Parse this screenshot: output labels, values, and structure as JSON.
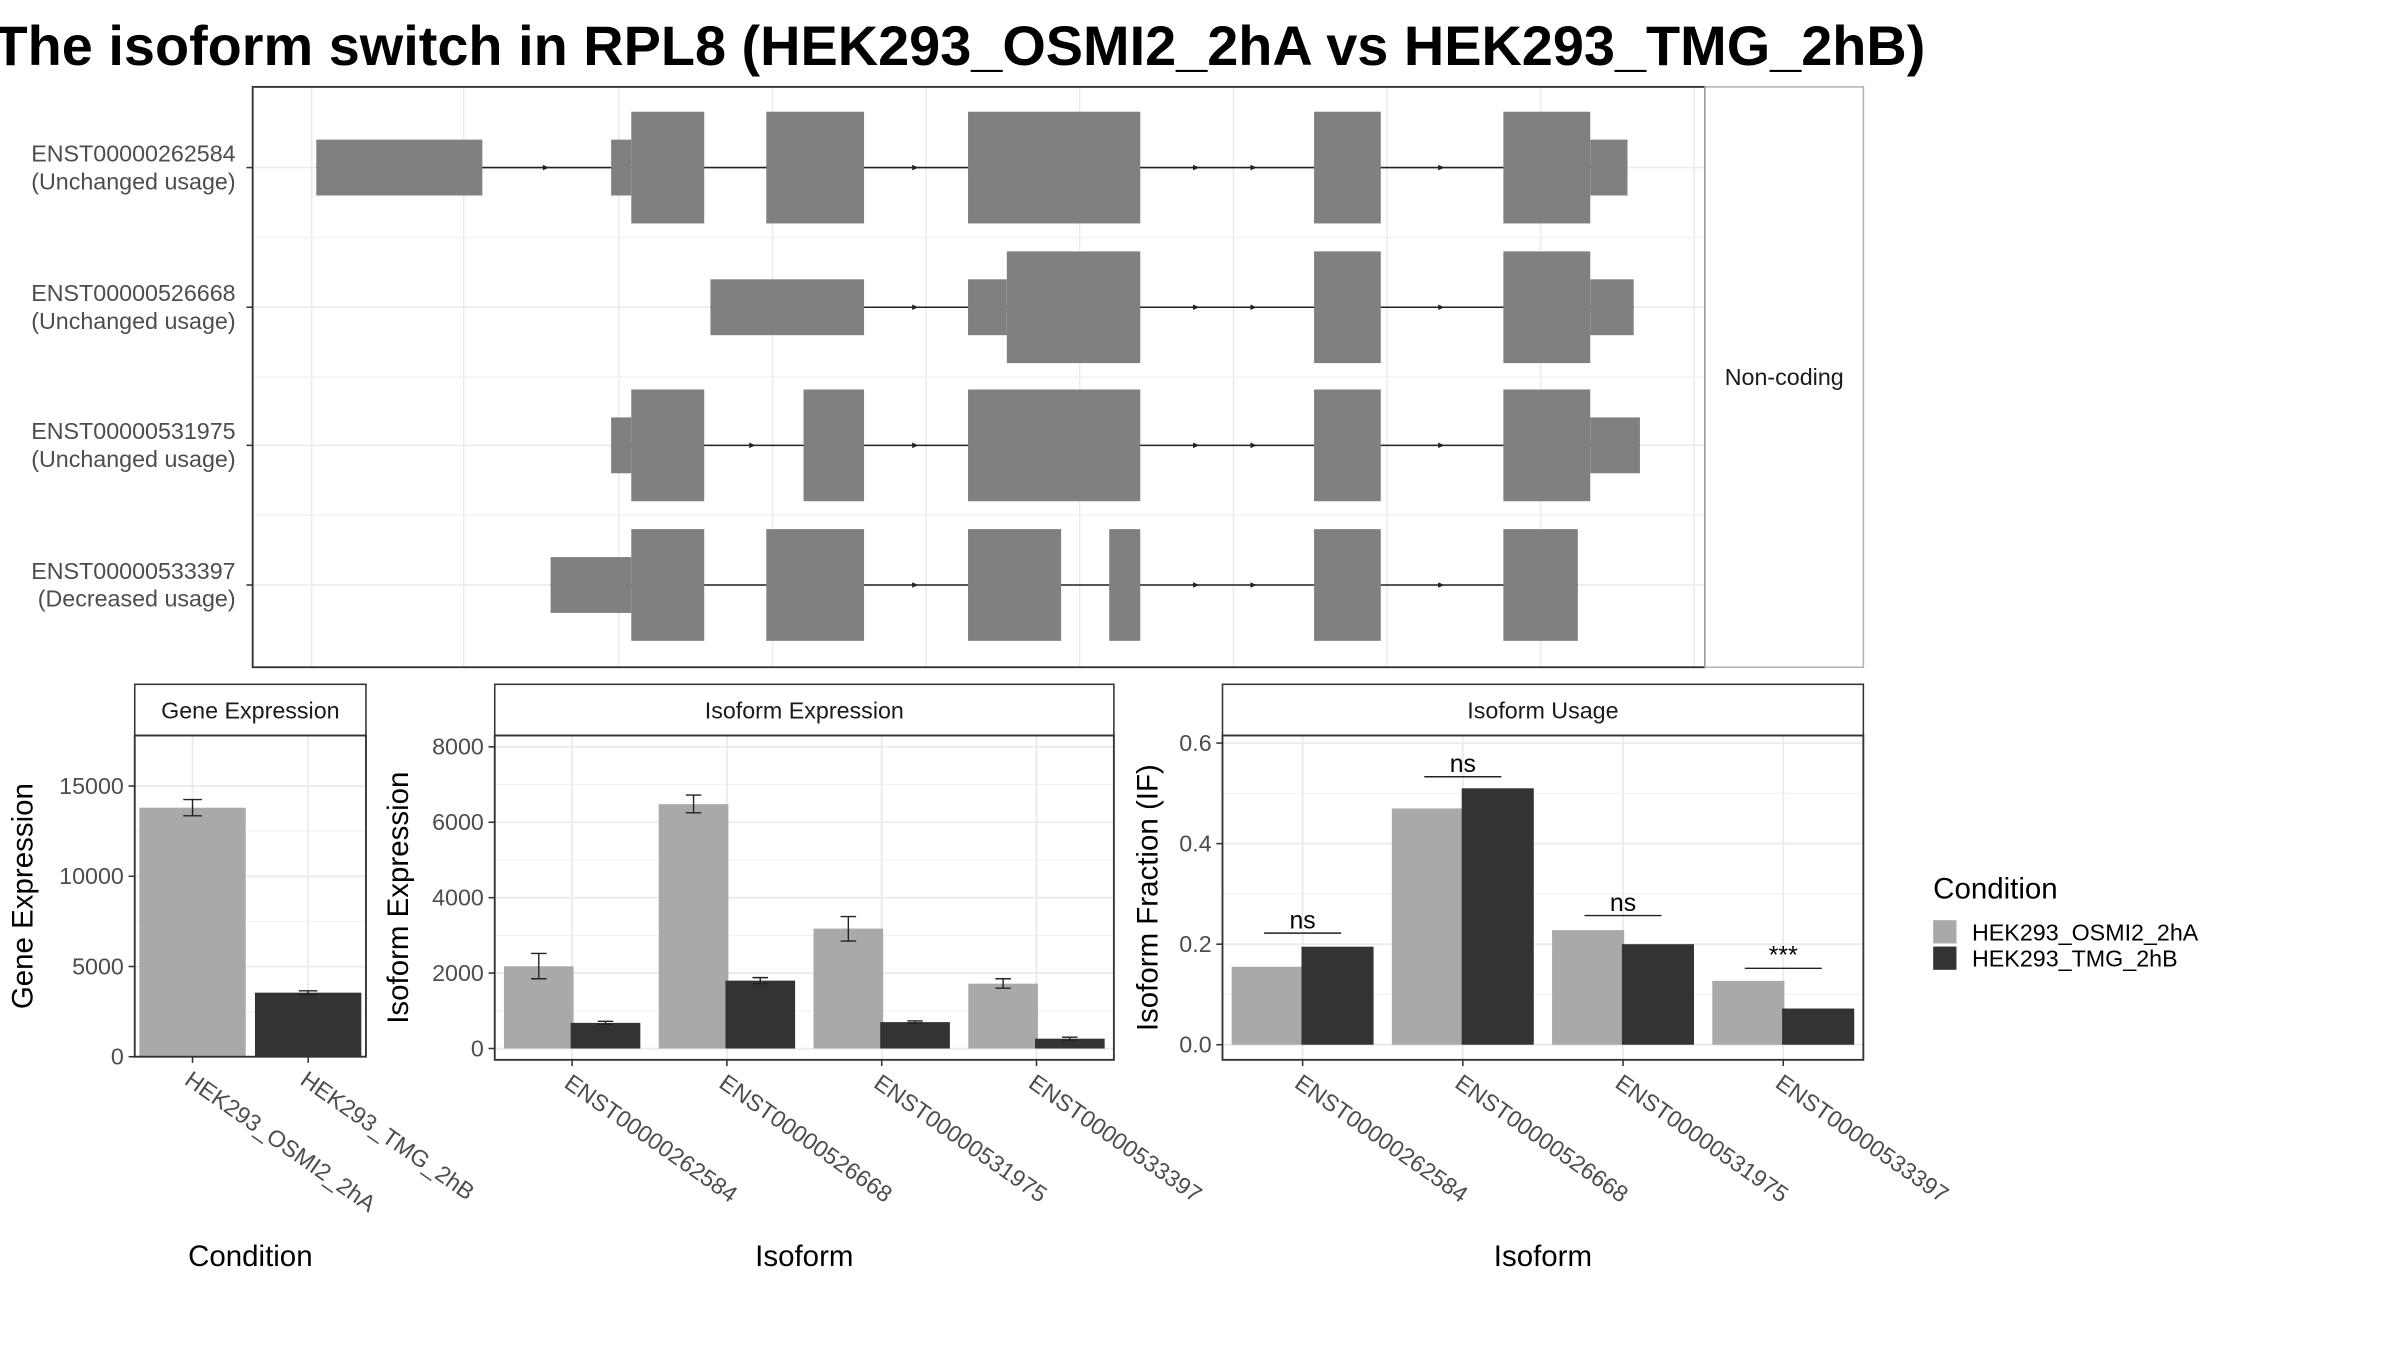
{
  "title": "The isoform switch in RPL8 (HEK293_OSMI2_2hA vs HEK293_TMG_2hB)",
  "colors": {
    "condition_a": "#a9a9a9",
    "condition_b": "#333333",
    "transcript": "#808080",
    "grid": "#ebebeb",
    "panel_border": "#333333",
    "strip_border": "#b3b3b3"
  },
  "structure_panel": {
    "strip_label": "Non-coding",
    "transcripts": [
      {
        "id": "ENST00000262584",
        "usage": "(Unchanged usage)"
      },
      {
        "id": "ENST00000526668",
        "usage": "(Unchanged usage)"
      },
      {
        "id": "ENST00000531975",
        "usage": "(Unchanged usage)"
      },
      {
        "id": "ENST00000533397",
        "usage": "(Decreased usage)"
      }
    ]
  },
  "legend": {
    "title": "Condition",
    "entries": [
      "HEK293_OSMI2_2hA",
      "HEK293_TMG_2hB"
    ]
  },
  "chart_data": [
    {
      "type": "bar",
      "title": "Gene Expression",
      "xlabel": "Condition",
      "ylabel": "Gene Expression",
      "categories": [
        "HEK293_OSMI2_2hA",
        "HEK293_TMG_2hB"
      ],
      "values": [
        13800,
        3550
      ],
      "errors": [
        [
          13350,
          14250
        ],
        [
          3450,
          3650
        ]
      ],
      "yticks": [
        0,
        5000,
        10000,
        15000
      ],
      "ylim": [
        0,
        17800
      ]
    },
    {
      "type": "bar",
      "title": "Isoform Expression",
      "xlabel": "Isoform",
      "ylabel": "Isoform Expression",
      "categories": [
        "ENST00000262584",
        "ENST00000526668",
        "ENST00000531975",
        "ENST00000533397"
      ],
      "series": [
        {
          "name": "HEK293_OSMI2_2hA",
          "values": [
            2180,
            6480,
            3180,
            1720
          ],
          "errors": [
            [
              1850,
              2520
            ],
            [
              6250,
              6720
            ],
            [
              2850,
              3500
            ],
            [
              1600,
              1850
            ]
          ]
        },
        {
          "name": "HEK293_TMG_2hB",
          "values": [
            680,
            1800,
            700,
            260
          ],
          "errors": [
            [
              640,
              720
            ],
            [
              1720,
              1880
            ],
            [
              670,
              730
            ],
            [
              220,
              300
            ]
          ]
        }
      ],
      "yticks": [
        0,
        2000,
        4000,
        6000,
        8000
      ],
      "ylim": [
        -300,
        8300
      ]
    },
    {
      "type": "bar",
      "title": "Isoform Usage",
      "xlabel": "Isoform",
      "ylabel": "Isoform Fraction (IF)",
      "categories": [
        "ENST00000262584",
        "ENST00000526668",
        "ENST00000531975",
        "ENST00000533397"
      ],
      "series": [
        {
          "name": "HEK293_OSMI2_2hA",
          "values": [
            0.155,
            0.47,
            0.228,
            0.127
          ]
        },
        {
          "name": "HEK293_TMG_2hB",
          "values": [
            0.195,
            0.51,
            0.2,
            0.072
          ]
        }
      ],
      "significance": [
        "ns",
        "ns",
        "ns",
        "***"
      ],
      "significance_y": [
        0.222,
        0.533,
        0.257,
        0.152
      ],
      "yticks": [
        0.0,
        0.2,
        0.4,
        0.6
      ],
      "ytick_labels": [
        "0.0",
        "0.2",
        "0.4",
        "0.6"
      ],
      "ylim": [
        -0.03,
        0.615
      ]
    }
  ]
}
